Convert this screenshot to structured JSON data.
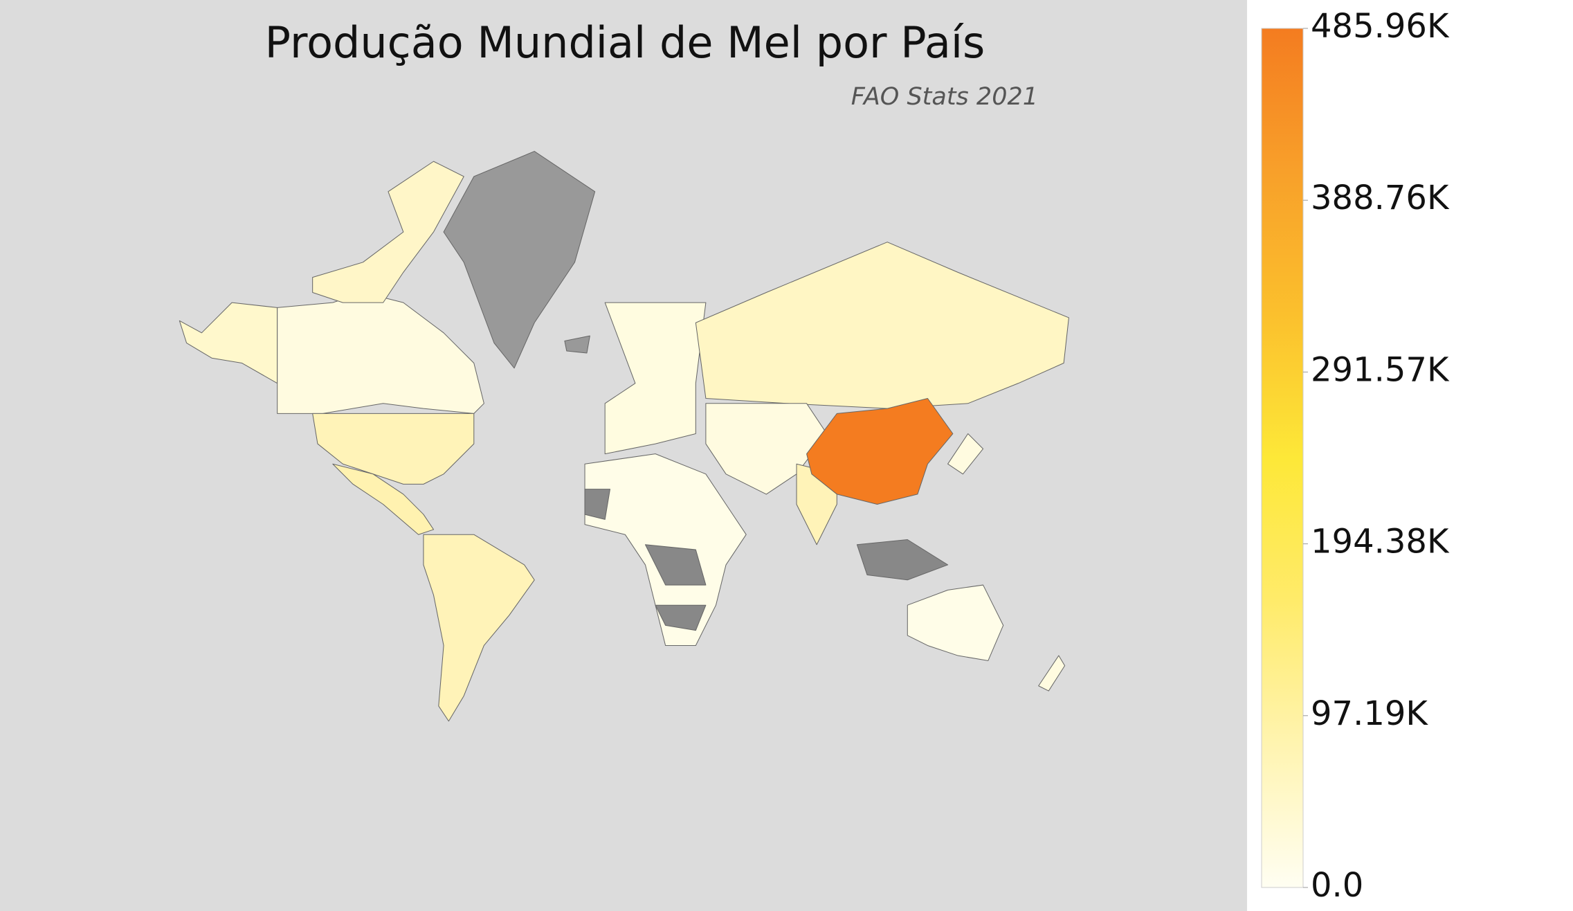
{
  "title": "Produção Mundial de Mel por País",
  "subtitle": "FAO Stats 2021",
  "colorbar": {
    "lim": [
      0,
      485960
    ],
    "ticks": [
      {
        "value": 0,
        "label": "0.0"
      },
      {
        "value": 97190,
        "label": "97.19K"
      },
      {
        "value": 194380,
        "label": "194.38K"
      },
      {
        "value": 291570,
        "label": "291.57K"
      },
      {
        "value": 388760,
        "label": "388.76K"
      },
      {
        "value": 485960,
        "label": "485.96K"
      }
    ],
    "colors": [
      "#fffef2",
      "#fff4b0",
      "#ffeb6a",
      "#fde838",
      "#fbc02d",
      "#f8a02a",
      "#f47c20"
    ]
  }
}
